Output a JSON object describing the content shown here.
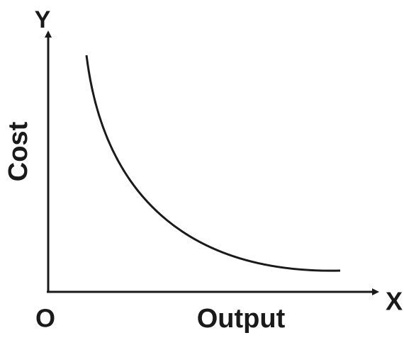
{
  "axes": {
    "y_label": "Y",
    "x_label": "X",
    "origin": "O"
  },
  "labels": {
    "y_title": "Cost",
    "x_title": "Output"
  }
}
